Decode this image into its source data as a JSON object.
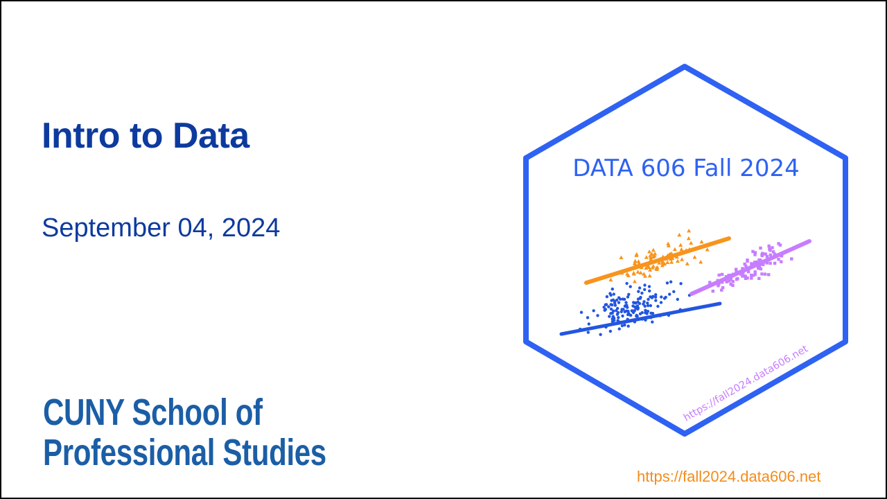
{
  "slide": {
    "title": "Intro to Data",
    "date": "September 04, 2024",
    "logo_line1": "CUNY School of",
    "logo_line2": "Professional Studies",
    "footer_url": "https://fall2024.data606.net"
  },
  "hex_sticker": {
    "heading": "DATA 606 Fall 2024",
    "url": "https://fall2024.data606.net",
    "colors": {
      "border": "#2f62f2",
      "heading": "#2f62f2",
      "orange": "#f7941d",
      "purple": "#c77dff",
      "blue": "#2255e0",
      "url": "#c77dff"
    }
  },
  "colors": {
    "title": "#0d3a9e",
    "logo": "#1b5ea6",
    "footer_url": "#f28c1c",
    "frame": "#000000"
  }
}
